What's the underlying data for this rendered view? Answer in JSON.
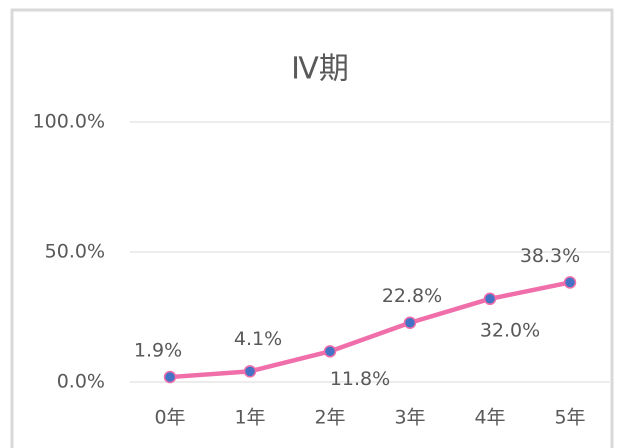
{
  "chart_data": {
    "type": "line",
    "title": "Ⅳ期",
    "categories": [
      "0年",
      "1年",
      "2年",
      "3年",
      "4年",
      "5年"
    ],
    "series": [
      {
        "name": "Ⅳ期",
        "color": "#f06ea9",
        "marker_color": "#4472c4",
        "values": [
          1.9,
          4.1,
          11.8,
          22.8,
          32.0,
          38.3
        ],
        "value_labels": [
          "1.9%",
          "4.1%",
          "11.8%",
          "22.8%",
          "32.0%",
          "38.3%"
        ]
      }
    ],
    "ylim": [
      0,
      100
    ],
    "yticks": [
      {
        "value": 0,
        "label": "0.0%"
      },
      {
        "value": 50,
        "label": "50.0%"
      },
      {
        "value": 100,
        "label": "100.0%"
      }
    ],
    "grid": true
  }
}
